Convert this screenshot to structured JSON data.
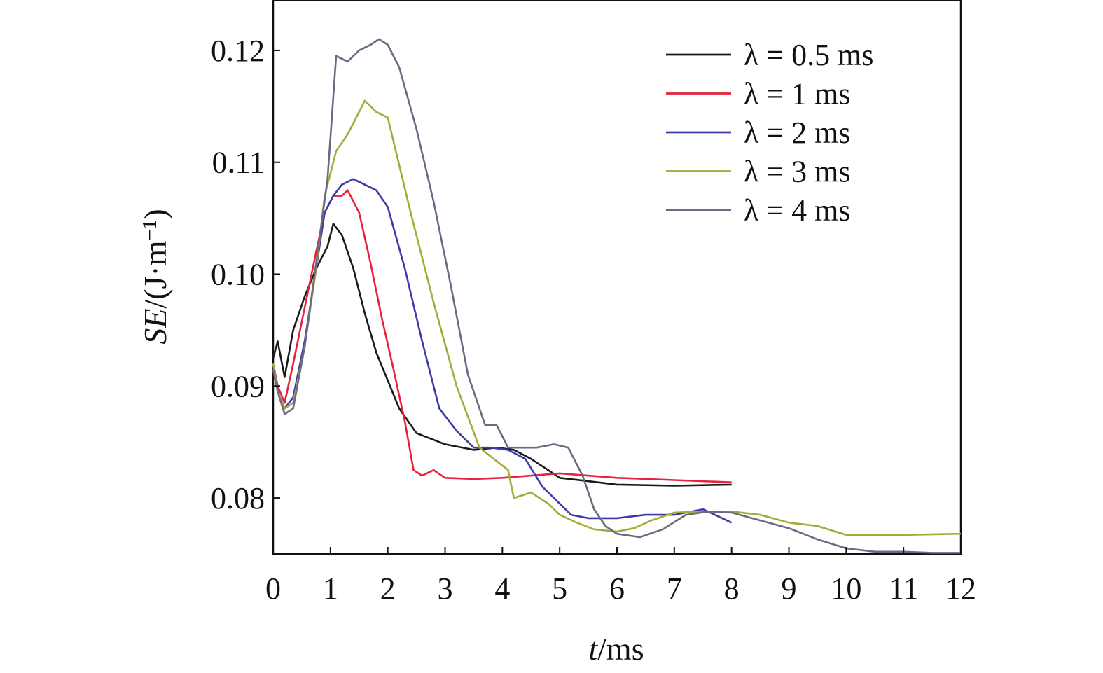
{
  "chart_data": {
    "type": "line",
    "xlabel": {
      "italic": "t",
      "rest": "/ms"
    },
    "ylabel": {
      "italic": "SE",
      "rest": "/(J·m",
      "sup": "−1",
      "close": ")"
    },
    "xlim": [
      0,
      12
    ],
    "ylim": [
      0.075,
      0.1245
    ],
    "xticks": [
      "0",
      "1",
      "2",
      "3",
      "4",
      "5",
      "6",
      "7",
      "8",
      "9",
      "10",
      "11",
      "12"
    ],
    "yticks": [
      "0.08",
      "0.09",
      "0.10",
      "0.11",
      "0.12"
    ],
    "ytick_values": [
      0.08,
      0.09,
      0.1,
      0.11,
      0.12
    ],
    "legend_position": "top-right",
    "grid": false,
    "series": [
      {
        "name": "λ = 0.5 ms",
        "color": "#1a1a1a",
        "x": [
          0,
          0.08,
          0.2,
          0.35,
          0.55,
          0.75,
          0.95,
          1.05,
          1.2,
          1.4,
          1.6,
          1.8,
          2.0,
          2.2,
          2.5,
          3.0,
          3.5,
          3.9,
          4.2,
          4.5,
          4.8,
          5.0,
          5.5,
          6.0,
          7.0,
          8.0
        ],
        "y": [
          0.0925,
          0.094,
          0.0908,
          0.095,
          0.098,
          0.1005,
          0.1025,
          0.1045,
          0.1035,
          0.1005,
          0.0965,
          0.093,
          0.0905,
          0.088,
          0.0858,
          0.0848,
          0.0843,
          0.0845,
          0.0843,
          0.0835,
          0.0825,
          0.0818,
          0.0815,
          0.0812,
          0.0811,
          0.0812
        ]
      },
      {
        "name": "λ = 1 ms",
        "color": "#e8223c",
        "x": [
          0,
          0.08,
          0.2,
          0.35,
          0.55,
          0.75,
          0.9,
          1.05,
          1.2,
          1.3,
          1.5,
          1.7,
          1.9,
          2.1,
          2.3,
          2.45,
          2.6,
          2.8,
          3.0,
          3.5,
          4.0,
          5.0,
          6.0,
          7.0,
          8.0
        ],
        "y": [
          0.092,
          0.09,
          0.0885,
          0.092,
          0.097,
          0.102,
          0.1055,
          0.107,
          0.107,
          0.1075,
          0.1055,
          0.101,
          0.096,
          0.0915,
          0.0868,
          0.0825,
          0.082,
          0.0825,
          0.0818,
          0.0817,
          0.0818,
          0.0822,
          0.0818,
          0.0816,
          0.0814
        ]
      },
      {
        "name": "λ = 2 ms",
        "color": "#3c3ca8",
        "x": [
          0,
          0.08,
          0.2,
          0.35,
          0.55,
          0.75,
          0.9,
          1.05,
          1.2,
          1.4,
          1.6,
          1.8,
          2.0,
          2.3,
          2.6,
          2.9,
          3.2,
          3.5,
          3.8,
          4.1,
          4.4,
          4.7,
          5.0,
          5.2,
          5.5,
          6.0,
          6.5,
          7.0,
          7.5,
          8.0
        ],
        "y": [
          0.092,
          0.0895,
          0.088,
          0.089,
          0.094,
          0.1005,
          0.1055,
          0.107,
          0.108,
          0.1085,
          0.108,
          0.1075,
          0.106,
          0.1005,
          0.094,
          0.088,
          0.086,
          0.0845,
          0.0845,
          0.0843,
          0.0835,
          0.081,
          0.0795,
          0.0785,
          0.0782,
          0.0782,
          0.0785,
          0.0785,
          0.079,
          0.0778
        ]
      },
      {
        "name": "λ = 3 ms",
        "color": "#a7aa3a",
        "x": [
          0,
          0.08,
          0.2,
          0.35,
          0.55,
          0.75,
          0.9,
          1.1,
          1.3,
          1.5,
          1.6,
          1.8,
          2.0,
          2.4,
          2.8,
          3.2,
          3.6,
          3.9,
          4.1,
          4.2,
          4.5,
          4.8,
          5.0,
          5.3,
          5.6,
          6.0,
          6.3,
          6.6,
          7.0,
          7.5,
          8.0,
          8.5,
          9.0,
          9.5,
          10.0,
          11.0,
          12.0
        ],
        "y": [
          0.092,
          0.0895,
          0.088,
          0.0885,
          0.0935,
          0.1005,
          0.107,
          0.111,
          0.1125,
          0.1145,
          0.1155,
          0.1145,
          0.114,
          0.1055,
          0.0975,
          0.09,
          0.0845,
          0.0833,
          0.0825,
          0.08,
          0.0805,
          0.0795,
          0.0785,
          0.0778,
          0.0772,
          0.077,
          0.0773,
          0.078,
          0.0787,
          0.0788,
          0.0788,
          0.0785,
          0.0778,
          0.0775,
          0.0767,
          0.0767,
          0.0768
        ]
      },
      {
        "name": "λ = 4 ms",
        "color": "#6a6a80",
        "x": [
          0,
          0.08,
          0.2,
          0.35,
          0.55,
          0.75,
          0.95,
          1.1,
          1.3,
          1.5,
          1.7,
          1.85,
          2.0,
          2.2,
          2.5,
          2.8,
          3.1,
          3.4,
          3.7,
          3.9,
          4.1,
          4.3,
          4.6,
          4.9,
          5.15,
          5.4,
          5.6,
          5.8,
          6.0,
          6.4,
          6.8,
          7.2,
          7.6,
          8.0,
          8.5,
          9.0,
          9.5,
          10.0,
          10.5,
          11.0,
          11.5,
          12.0
        ],
        "y": [
          0.0915,
          0.0895,
          0.0875,
          0.088,
          0.0935,
          0.101,
          0.1085,
          0.1195,
          0.119,
          0.12,
          0.1205,
          0.121,
          0.1205,
          0.1185,
          0.113,
          0.1065,
          0.099,
          0.091,
          0.0865,
          0.0865,
          0.0845,
          0.0845,
          0.0845,
          0.0848,
          0.0845,
          0.082,
          0.079,
          0.0775,
          0.0768,
          0.0765,
          0.0772,
          0.0785,
          0.0788,
          0.0787,
          0.078,
          0.0773,
          0.0763,
          0.0755,
          0.0752,
          0.0752,
          0.0751,
          0.0751
        ]
      }
    ]
  }
}
